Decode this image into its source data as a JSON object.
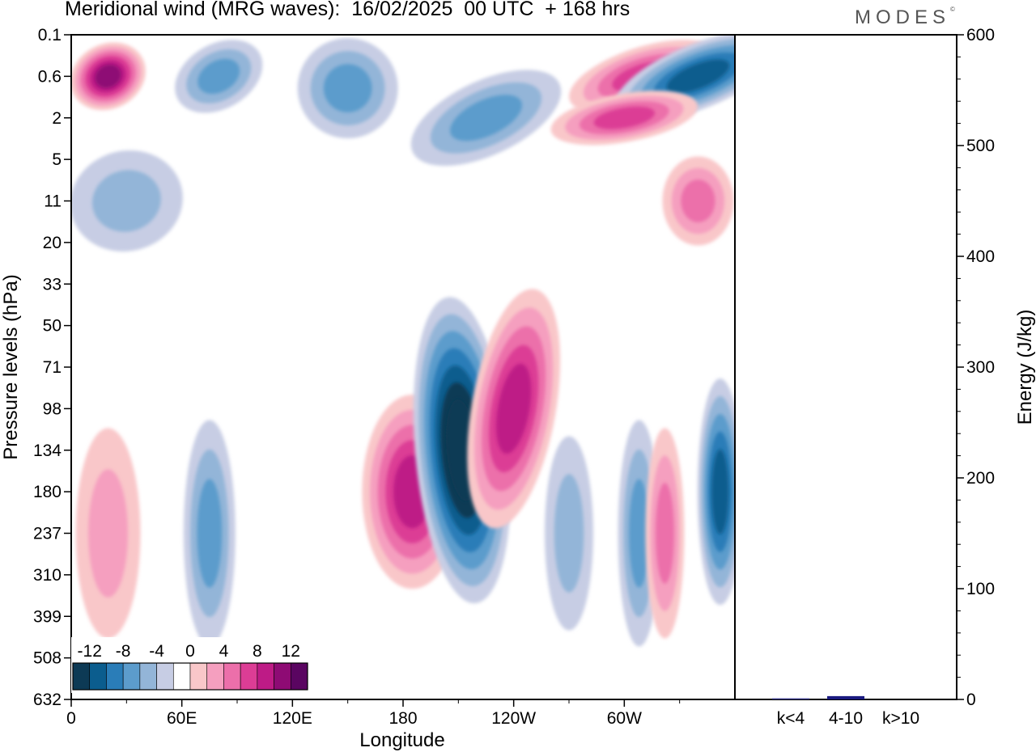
{
  "title": "Meridional wind (MRG waves):  16/02/2025  00 UTC  + 168 hrs",
  "logo": "MODES",
  "chart_data": [
    {
      "type": "heatmap",
      "title": "Meridional wind (MRG waves):  16/02/2025  00 UTC  + 168 hrs",
      "xlabel": "Longitude",
      "ylabel": "Pressure levels (hPa)",
      "x_ticks": [
        "0",
        "60E",
        "120E",
        "180",
        "120W",
        "60W"
      ],
      "x_tick_values": [
        0,
        60,
        120,
        180,
        240,
        300
      ],
      "xlim": [
        0,
        360
      ],
      "y_ticks": [
        "0.1",
        "0.6",
        "2",
        "5",
        "11",
        "20",
        "33",
        "50",
        "71",
        "98",
        "134",
        "180",
        "237",
        "310",
        "399",
        "508",
        "632"
      ],
      "colorbar": {
        "labels": [
          "-12",
          "-8",
          "-4",
          "0",
          "4",
          "8",
          "12"
        ],
        "levels": [
          -14,
          -12,
          -10,
          -8,
          -6,
          -4,
          -2,
          2,
          4,
          6,
          8,
          10,
          12,
          14
        ],
        "colors": [
          "#0d3a55",
          "#0b5d8e",
          "#2a7db8",
          "#5c9ccc",
          "#93b5d8",
          "#c7cde4",
          "#ffffff",
          "#f9c7c9",
          "#f59fbf",
          "#ec6faa",
          "#dc3d95",
          "#be1b86",
          "#8e0b74",
          "#5a0561"
        ]
      },
      "features": [
        {
          "lon": 20,
          "level": "0.6",
          "value": 13
        },
        {
          "lon": 80,
          "level": "0.6",
          "value": -7
        },
        {
          "lon": 150,
          "level": "1",
          "value": -8
        },
        {
          "lon": 225,
          "level": "2",
          "value": -8
        },
        {
          "lon": 310,
          "level": "0.6",
          "value": 10
        },
        {
          "lon": 340,
          "level": "0.6",
          "value": -11
        },
        {
          "lon": 300,
          "level": "2",
          "value": 10
        },
        {
          "lon": 340,
          "level": "11",
          "value": 7
        },
        {
          "lon": 30,
          "level": "11",
          "value": -5
        },
        {
          "lon": 20,
          "level": "237",
          "value": 6
        },
        {
          "lon": 75,
          "level": "237",
          "value": -7
        },
        {
          "lon": 185,
          "level": "180",
          "value": 11
        },
        {
          "lon": 212,
          "level": "134",
          "value": -15
        },
        {
          "lon": 240,
          "level": "98",
          "value": 12
        },
        {
          "lon": 270,
          "level": "237",
          "value": -6
        },
        {
          "lon": 308,
          "level": "237",
          "value": -8
        },
        {
          "lon": 322,
          "level": "237",
          "value": 7
        },
        {
          "lon": 352,
          "level": "180",
          "value": -12
        }
      ]
    },
    {
      "type": "bar",
      "ylabel": "Energy (J/kg)",
      "categories": [
        "k<4",
        "4-10",
        "k>10"
      ],
      "values": [
        1,
        3,
        0
      ],
      "ylim": [
        0,
        600
      ],
      "y_ticks": [
        "0",
        "100",
        "200",
        "300",
        "400",
        "500",
        "600"
      ],
      "y_tick_values": [
        0,
        100,
        200,
        300,
        400,
        500,
        600
      ],
      "bar_colors": [
        "#3c3c8c",
        "#1a1a80",
        "#1a1a80"
      ]
    }
  ]
}
